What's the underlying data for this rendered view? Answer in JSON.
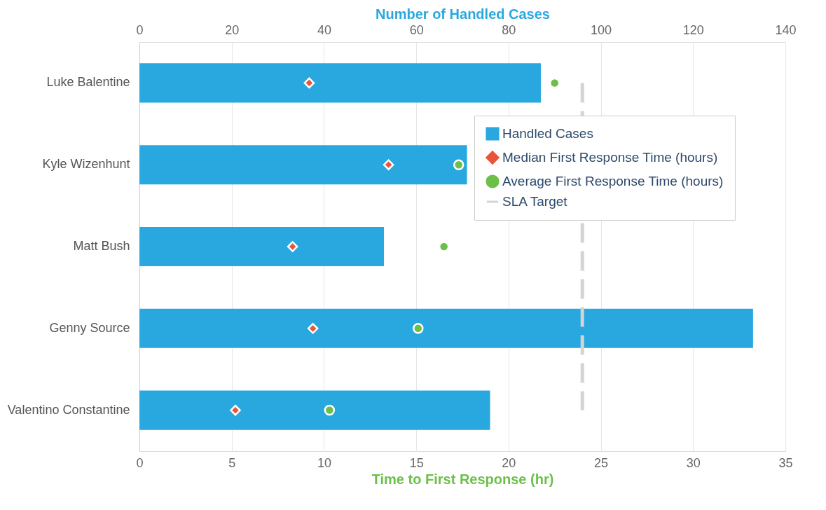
{
  "chart_data": {
    "type": "bar",
    "orientation": "horizontal",
    "categories": [
      "Luke Balentine",
      "Kyle Wizenhunt",
      "Matt Bush",
      "Genny Source",
      "Valentino Constantine"
    ],
    "series": [
      {
        "name": "Handled Cases",
        "axis": "x2",
        "color": "#29a8e0",
        "values": [
          87,
          71,
          53,
          133,
          76
        ]
      },
      {
        "name": "Median First Response Time (hours)",
        "type": "scatter",
        "marker": "diamond",
        "color": "#e8553c",
        "values": [
          9.2,
          13.5,
          8.3,
          9.4,
          5.2
        ]
      },
      {
        "name": "Average First Response Time (hours)",
        "type": "scatter",
        "marker": "circle",
        "color": "#6cc04a",
        "values": [
          22.5,
          17.3,
          16.5,
          15.1,
          10.3
        ]
      }
    ],
    "ref_lines": [
      {
        "axis": "x",
        "value": 24,
        "label": "SLA Target",
        "color": "#d4d4d4",
        "line_style": "dashed"
      }
    ],
    "xlabel": "Time to First Response (hr)",
    "x2label": "Number of Handled Cases",
    "xlim": [
      0,
      35
    ],
    "xticks": [
      0,
      5,
      10,
      15,
      20,
      25,
      30,
      35
    ],
    "x2lim": [
      0,
      140
    ],
    "x2ticks": [
      0,
      20,
      40,
      60,
      80,
      100,
      120,
      140
    ],
    "grid": "x",
    "legend": "right"
  }
}
